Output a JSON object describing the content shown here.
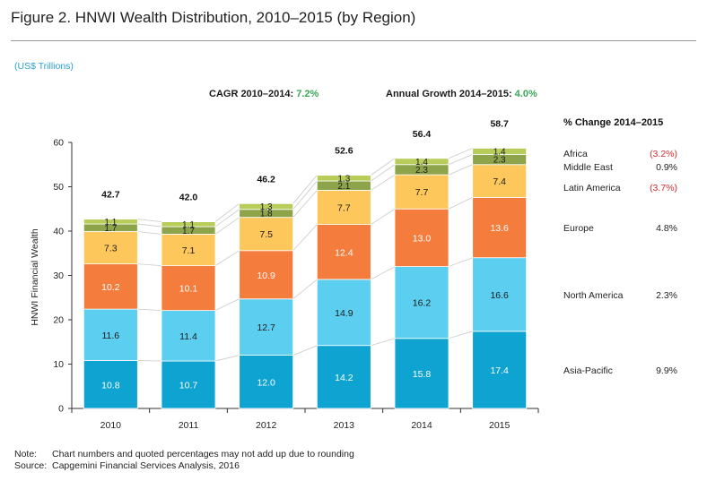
{
  "title": "Figure 2. HNWI Wealth Distribution, 2010–2015 (by Region)",
  "units": "(US$ Trillions)",
  "cagr": {
    "label": "CAGR 2010–2014: ",
    "value": "7.2%"
  },
  "annual": {
    "label": "Annual Growth 2014–2015: ",
    "value": "4.0%"
  },
  "change_header": "% Change 2014–2015",
  "notes": [
    {
      "key": "Note:",
      "text": "Chart numbers and quoted percentages may not add up due to rounding"
    },
    {
      "key": "Source:",
      "text": "Capgemini Financial Services Analysis, 2016"
    }
  ],
  "chart_data": {
    "type": "bar",
    "stacked": true,
    "categories": [
      "2010",
      "2011",
      "2012",
      "2013",
      "2014",
      "2015"
    ],
    "ylabel": "HNWI Financial Wealth",
    "ylim": [
      0,
      60
    ],
    "yticks": [
      0,
      10,
      20,
      30,
      40,
      50,
      60
    ],
    "totals": [
      "42.7",
      "42.0",
      "46.2",
      "52.6",
      "56.4",
      "58.7"
    ],
    "series": [
      {
        "name": "Asia-Pacific",
        "color": "#0fa3d1",
        "values": [
          10.8,
          10.7,
          12.0,
          14.2,
          15.8,
          17.4
        ],
        "change": "9.9%",
        "negative": false
      },
      {
        "name": "North America",
        "color": "#5ccff0",
        "values": [
          11.6,
          11.4,
          12.7,
          14.9,
          16.2,
          16.6
        ],
        "change": "2.3%",
        "negative": false
      },
      {
        "name": "Europe",
        "color": "#f47c3c",
        "values": [
          10.2,
          10.1,
          10.9,
          12.4,
          13.0,
          13.6
        ],
        "change": "4.8%",
        "negative": false
      },
      {
        "name": "Latin America",
        "color": "#fdc75c",
        "values": [
          7.3,
          7.1,
          7.5,
          7.7,
          7.7,
          7.4
        ],
        "change": "(3.7%)",
        "negative": true
      },
      {
        "name": "Middle East",
        "color": "#8da44a",
        "values": [
          1.7,
          1.7,
          1.8,
          2.1,
          2.3,
          2.3
        ],
        "change": "0.9%",
        "negative": false
      },
      {
        "name": "Africa",
        "color": "#b8cc5a",
        "values": [
          1.1,
          1.1,
          1.3,
          1.3,
          1.4,
          1.4
        ],
        "change": "(3.2%)",
        "negative": true
      }
    ]
  }
}
